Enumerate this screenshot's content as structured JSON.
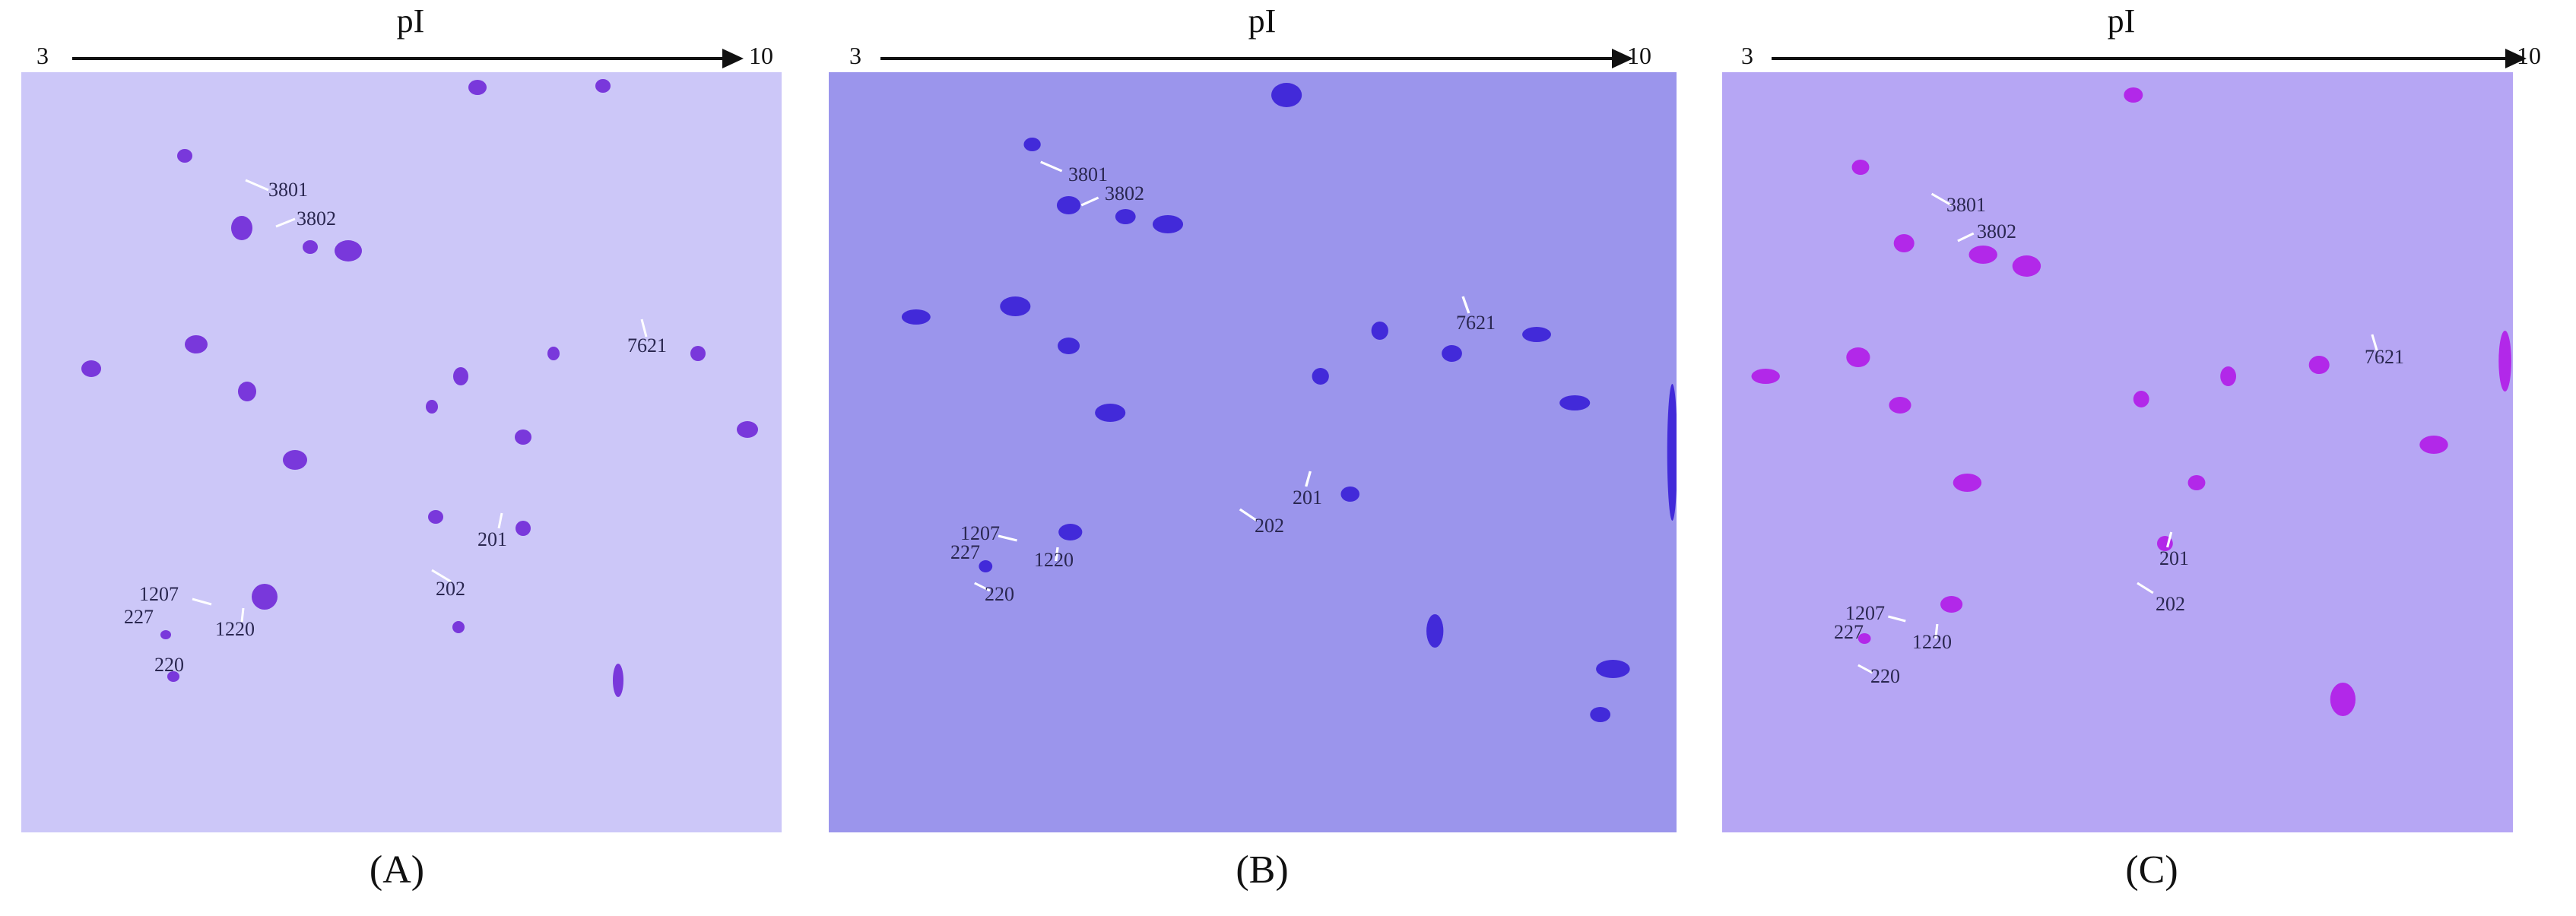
{
  "axis": {
    "title": "pI",
    "min": "3",
    "max": "10"
  },
  "panels": [
    {
      "caption": "(A)",
      "gel_color": "#ccc7f8",
      "spot_color": "#6a1fd6",
      "spot_labels": {
        "l3801": "3801",
        "l3802": "3802",
        "l7621": "7621",
        "l201": "201",
        "l202": "202",
        "l1207": "1207",
        "l227": "227",
        "l220": "220",
        "l1220": "1220"
      }
    },
    {
      "caption": "(B)",
      "gel_color": "#9b95ec",
      "spot_color": "#3218d6",
      "spot_labels": {
        "l3801": "3801",
        "l3802": "3802",
        "l7621": "7621",
        "l201": "201",
        "l202": "202",
        "l1207": "1207",
        "l227": "227",
        "l220": "220",
        "l1220": "1220"
      }
    },
    {
      "caption": "(C)",
      "gel_color": "#b6a6f4",
      "spot_color": "#b112e6",
      "spot_labels": {
        "l3801": "3801",
        "l3802": "3802",
        "l7621": "7621",
        "l201": "201",
        "l202": "202",
        "l1207": "1207",
        "l227": "227",
        "l220": "220",
        "l1220": "1220"
      }
    }
  ]
}
